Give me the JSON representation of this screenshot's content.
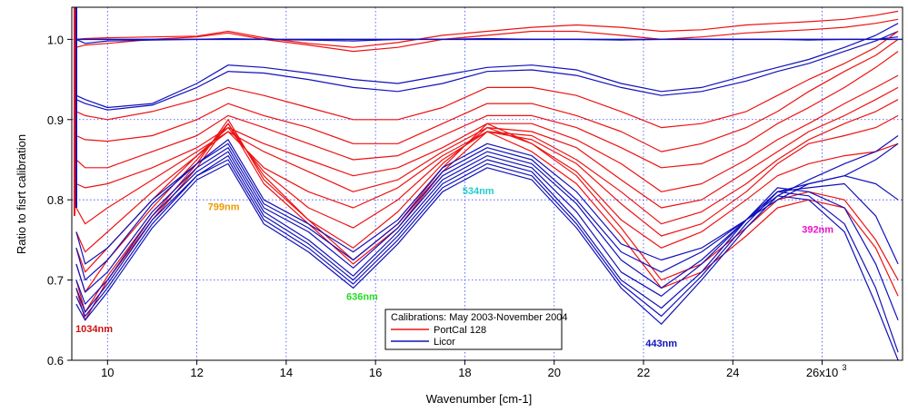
{
  "chart_data": {
    "type": "line",
    "title": "",
    "xlabel": "Wavenumber [cm-1]",
    "ylabel": "Ratio to fisrt calibration",
    "xlim": [
      9200,
      27800
    ],
    "ylim": [
      0.6,
      1.04
    ],
    "x_ticks": [
      {
        "value": 10000,
        "label": "10"
      },
      {
        "value": 12000,
        "label": "12"
      },
      {
        "value": 14000,
        "label": "14"
      },
      {
        "value": 16000,
        "label": "16"
      },
      {
        "value": 18000,
        "label": "18"
      },
      {
        "value": 20000,
        "label": "20"
      },
      {
        "value": 22000,
        "label": "22"
      },
      {
        "value": 24000,
        "label": "24"
      },
      {
        "value": 26000,
        "label": "26x10"
      }
    ],
    "x_exponent_label": "3",
    "y_ticks": [
      {
        "value": 0.6,
        "label": "0.6"
      },
      {
        "value": 0.7,
        "label": "0.7"
      },
      {
        "value": 0.8,
        "label": "0.8"
      },
      {
        "value": 0.9,
        "label": "0.9"
      },
      {
        "value": 1.0,
        "label": "1.0"
      }
    ],
    "grid": true,
    "legend": {
      "title": "Calibrations: May 2003-November 2004",
      "placement": "bottom-center",
      "entries": [
        {
          "label": "PortCal 128",
          "color": "#ee1111"
        },
        {
          "label": "Licor",
          "color": "#1111bb"
        }
      ]
    },
    "annotations": [
      {
        "text": "1034nm",
        "x": 9700,
        "y": 0.635,
        "color": "#cc1111"
      },
      {
        "text": "799nm",
        "x": 12600,
        "y": 0.787,
        "color": "#ee9900"
      },
      {
        "text": "636nm",
        "x": 15700,
        "y": 0.675,
        "color": "#22dd22"
      },
      {
        "text": "534nm",
        "x": 18300,
        "y": 0.807,
        "color": "#22cccc"
      },
      {
        "text": "443nm",
        "x": 22400,
        "y": 0.617,
        "color": "#1111bb"
      },
      {
        "text": "392nm",
        "x": 25900,
        "y": 0.759,
        "color": "#ee11cc"
      }
    ],
    "x": [
      9300,
      9500,
      10000,
      11000,
      12000,
      12700,
      13500,
      14500,
      15500,
      16500,
      17500,
      18500,
      19500,
      20500,
      21500,
      22400,
      23300,
      24300,
      25000,
      25700,
      26500,
      27200,
      27700
    ],
    "series": [
      {
        "color": "#ee1111",
        "values": [
          1.0,
          1.001,
          1.002,
          1.003,
          1.004,
          1.01,
          1.002,
          0.995,
          0.99,
          0.996,
          1.005,
          1.01,
          1.015,
          1.018,
          1.015,
          1.01,
          1.012,
          1.018,
          1.02,
          1.022,
          1.025,
          1.03,
          1.035
        ]
      },
      {
        "color": "#ee1111",
        "values": [
          0.99,
          0.993,
          0.995,
          1.0,
          1.003,
          1.008,
          1.0,
          0.993,
          0.985,
          0.99,
          1.0,
          1.005,
          1.01,
          1.01,
          1.005,
          1.0,
          1.003,
          1.008,
          1.01,
          1.012,
          1.015,
          1.02,
          1.025
        ]
      },
      {
        "color": "#1111bb",
        "values": [
          1.0,
          0.995,
          0.998,
          0.999,
          1.0,
          1.001,
          1.0,
          0.999,
          0.998,
          1.0,
          1.0,
          1.001,
          1.0,
          1.0,
          0.999,
          1.0,
          1.0,
          1.0,
          1.0,
          0.999,
          1.0,
          1.0,
          1.003
        ]
      },
      {
        "color": "#1111bb",
        "values": [
          0.93,
          0.925,
          0.915,
          0.92,
          0.945,
          0.968,
          0.965,
          0.958,
          0.95,
          0.945,
          0.955,
          0.965,
          0.968,
          0.962,
          0.945,
          0.935,
          0.94,
          0.955,
          0.965,
          0.975,
          0.99,
          1.005,
          1.02
        ]
      },
      {
        "color": "#1111bb",
        "values": [
          0.925,
          0.92,
          0.912,
          0.918,
          0.94,
          0.96,
          0.958,
          0.95,
          0.94,
          0.935,
          0.945,
          0.96,
          0.962,
          0.955,
          0.94,
          0.93,
          0.935,
          0.948,
          0.96,
          0.97,
          0.985,
          0.998,
          1.01
        ]
      },
      {
        "color": "#ee1111",
        "values": [
          0.91,
          0.905,
          0.9,
          0.91,
          0.925,
          0.94,
          0.93,
          0.915,
          0.9,
          0.9,
          0.915,
          0.94,
          0.94,
          0.93,
          0.91,
          0.89,
          0.895,
          0.91,
          0.93,
          0.95,
          0.97,
          0.99,
          1.01
        ]
      },
      {
        "color": "#ee1111",
        "values": [
          0.88,
          0.875,
          0.873,
          0.88,
          0.9,
          0.92,
          0.905,
          0.89,
          0.87,
          0.87,
          0.895,
          0.92,
          0.92,
          0.905,
          0.885,
          0.86,
          0.87,
          0.89,
          0.91,
          0.935,
          0.96,
          0.98,
          1.0
        ]
      },
      {
        "color": "#ee1111",
        "values": [
          0.85,
          0.84,
          0.84,
          0.86,
          0.88,
          0.905,
          0.89,
          0.87,
          0.85,
          0.855,
          0.88,
          0.905,
          0.905,
          0.89,
          0.865,
          0.84,
          0.845,
          0.87,
          0.895,
          0.915,
          0.94,
          0.965,
          0.985
        ]
      },
      {
        "color": "#ee1111",
        "values": [
          0.82,
          0.815,
          0.82,
          0.84,
          0.865,
          0.89,
          0.87,
          0.85,
          0.83,
          0.84,
          0.865,
          0.895,
          0.895,
          0.875,
          0.845,
          0.81,
          0.82,
          0.85,
          0.875,
          0.895,
          0.92,
          0.94,
          0.955
        ]
      },
      {
        "color": "#ee1111",
        "values": [
          0.79,
          0.77,
          0.79,
          0.825,
          0.86,
          0.885,
          0.86,
          0.835,
          0.81,
          0.825,
          0.86,
          0.89,
          0.885,
          0.865,
          0.825,
          0.79,
          0.8,
          0.835,
          0.86,
          0.885,
          0.905,
          0.925,
          0.94
        ]
      },
      {
        "color": "#ee1111",
        "values": [
          0.76,
          0.735,
          0.76,
          0.81,
          0.855,
          0.885,
          0.84,
          0.81,
          0.79,
          0.815,
          0.855,
          0.885,
          0.88,
          0.85,
          0.81,
          0.77,
          0.785,
          0.82,
          0.85,
          0.875,
          0.895,
          0.91,
          0.925
        ]
      },
      {
        "color": "#ee1111",
        "values": [
          0.74,
          0.71,
          0.74,
          0.8,
          0.855,
          0.89,
          0.835,
          0.79,
          0.765,
          0.8,
          0.85,
          0.885,
          0.875,
          0.845,
          0.795,
          0.755,
          0.77,
          0.81,
          0.845,
          0.87,
          0.88,
          0.89,
          0.905
        ]
      },
      {
        "color": "#ee1111",
        "values": [
          0.72,
          0.685,
          0.725,
          0.79,
          0.85,
          0.895,
          0.83,
          0.775,
          0.74,
          0.785,
          0.845,
          0.89,
          0.87,
          0.835,
          0.775,
          0.74,
          0.76,
          0.8,
          0.83,
          0.845,
          0.855,
          0.86,
          0.87
        ]
      },
      {
        "color": "#ee1111",
        "values": [
          0.7,
          0.66,
          0.705,
          0.78,
          0.845,
          0.9,
          0.825,
          0.775,
          0.725,
          0.77,
          0.84,
          0.895,
          0.87,
          0.83,
          0.765,
          0.7,
          0.72,
          0.765,
          0.8,
          0.81,
          0.8,
          0.75,
          0.7
        ]
      },
      {
        "color": "#ee1111",
        "values": [
          0.69,
          0.65,
          0.7,
          0.775,
          0.84,
          0.895,
          0.82,
          0.77,
          0.72,
          0.765,
          0.835,
          0.885,
          0.86,
          0.82,
          0.755,
          0.69,
          0.71,
          0.755,
          0.79,
          0.8,
          0.79,
          0.74,
          0.68
        ]
      },
      {
        "color": "#1111bb",
        "values": [
          0.76,
          0.72,
          0.74,
          0.8,
          0.845,
          0.875,
          0.8,
          0.77,
          0.735,
          0.775,
          0.84,
          0.87,
          0.855,
          0.81,
          0.745,
          0.725,
          0.74,
          0.775,
          0.8,
          0.82,
          0.83,
          0.85,
          0.87
        ]
      },
      {
        "color": "#1111bb",
        "values": [
          0.74,
          0.7,
          0.725,
          0.795,
          0.845,
          0.87,
          0.795,
          0.765,
          0.725,
          0.77,
          0.835,
          0.865,
          0.85,
          0.8,
          0.735,
          0.71,
          0.735,
          0.775,
          0.805,
          0.825,
          0.845,
          0.86,
          0.88
        ]
      },
      {
        "color": "#1111bb",
        "values": [
          0.72,
          0.685,
          0.71,
          0.785,
          0.84,
          0.865,
          0.79,
          0.76,
          0.715,
          0.765,
          0.83,
          0.86,
          0.845,
          0.795,
          0.725,
          0.69,
          0.725,
          0.775,
          0.81,
          0.82,
          0.83,
          0.82,
          0.8
        ]
      },
      {
        "color": "#1111bb",
        "values": [
          0.7,
          0.67,
          0.7,
          0.78,
          0.835,
          0.86,
          0.785,
          0.75,
          0.705,
          0.76,
          0.825,
          0.855,
          0.84,
          0.785,
          0.71,
          0.68,
          0.72,
          0.775,
          0.81,
          0.815,
          0.82,
          0.78,
          0.72
        ]
      },
      {
        "color": "#1111bb",
        "values": [
          0.69,
          0.66,
          0.695,
          0.775,
          0.83,
          0.855,
          0.78,
          0.745,
          0.7,
          0.755,
          0.82,
          0.85,
          0.835,
          0.775,
          0.7,
          0.665,
          0.71,
          0.775,
          0.815,
          0.81,
          0.79,
          0.72,
          0.65
        ]
      },
      {
        "color": "#1111bb",
        "values": [
          0.68,
          0.655,
          0.69,
          0.77,
          0.83,
          0.85,
          0.775,
          0.74,
          0.695,
          0.75,
          0.815,
          0.845,
          0.83,
          0.77,
          0.695,
          0.655,
          0.705,
          0.77,
          0.81,
          0.805,
          0.77,
          0.69,
          0.61
        ]
      },
      {
        "color": "#1111bb",
        "values": [
          0.67,
          0.65,
          0.685,
          0.765,
          0.825,
          0.845,
          0.77,
          0.735,
          0.69,
          0.745,
          0.81,
          0.84,
          0.825,
          0.765,
          0.69,
          0.645,
          0.7,
          0.765,
          0.805,
          0.8,
          0.76,
          0.67,
          0.6
        ]
      }
    ]
  }
}
